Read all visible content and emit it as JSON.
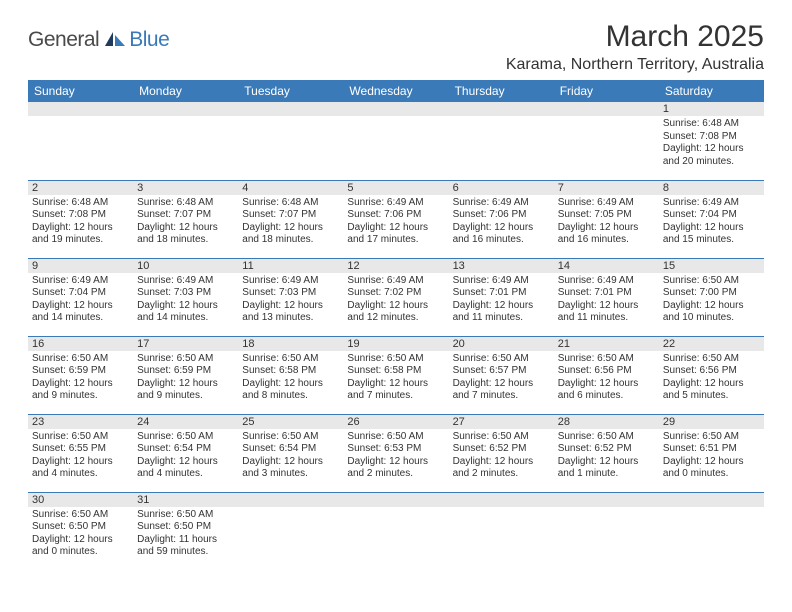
{
  "brand": {
    "text1": "General",
    "text2": "Blue",
    "icon_color_dark": "#1f3a5c",
    "icon_color_light": "#3a7ab8"
  },
  "title": "March 2025",
  "location": "Karama, Northern Territory, Australia",
  "colors": {
    "header_bg": "#3a7ab8",
    "header_text": "#ffffff",
    "daynum_bg": "#e8e8e8",
    "row_border": "#3a7ab8",
    "text": "#333333"
  },
  "dayHeaders": [
    "Sunday",
    "Monday",
    "Tuesday",
    "Wednesday",
    "Thursday",
    "Friday",
    "Saturday"
  ],
  "weeks": [
    [
      null,
      null,
      null,
      null,
      null,
      null,
      {
        "n": "1",
        "sunrise": "6:48 AM",
        "sunset": "7:08 PM",
        "daylight": "12 hours and 20 minutes."
      }
    ],
    [
      {
        "n": "2",
        "sunrise": "6:48 AM",
        "sunset": "7:08 PM",
        "daylight": "12 hours and 19 minutes."
      },
      {
        "n": "3",
        "sunrise": "6:48 AM",
        "sunset": "7:07 PM",
        "daylight": "12 hours and 18 minutes."
      },
      {
        "n": "4",
        "sunrise": "6:48 AM",
        "sunset": "7:07 PM",
        "daylight": "12 hours and 18 minutes."
      },
      {
        "n": "5",
        "sunrise": "6:49 AM",
        "sunset": "7:06 PM",
        "daylight": "12 hours and 17 minutes."
      },
      {
        "n": "6",
        "sunrise": "6:49 AM",
        "sunset": "7:06 PM",
        "daylight": "12 hours and 16 minutes."
      },
      {
        "n": "7",
        "sunrise": "6:49 AM",
        "sunset": "7:05 PM",
        "daylight": "12 hours and 16 minutes."
      },
      {
        "n": "8",
        "sunrise": "6:49 AM",
        "sunset": "7:04 PM",
        "daylight": "12 hours and 15 minutes."
      }
    ],
    [
      {
        "n": "9",
        "sunrise": "6:49 AM",
        "sunset": "7:04 PM",
        "daylight": "12 hours and 14 minutes."
      },
      {
        "n": "10",
        "sunrise": "6:49 AM",
        "sunset": "7:03 PM",
        "daylight": "12 hours and 14 minutes."
      },
      {
        "n": "11",
        "sunrise": "6:49 AM",
        "sunset": "7:03 PM",
        "daylight": "12 hours and 13 minutes."
      },
      {
        "n": "12",
        "sunrise": "6:49 AM",
        "sunset": "7:02 PM",
        "daylight": "12 hours and 12 minutes."
      },
      {
        "n": "13",
        "sunrise": "6:49 AM",
        "sunset": "7:01 PM",
        "daylight": "12 hours and 11 minutes."
      },
      {
        "n": "14",
        "sunrise": "6:49 AM",
        "sunset": "7:01 PM",
        "daylight": "12 hours and 11 minutes."
      },
      {
        "n": "15",
        "sunrise": "6:50 AM",
        "sunset": "7:00 PM",
        "daylight": "12 hours and 10 minutes."
      }
    ],
    [
      {
        "n": "16",
        "sunrise": "6:50 AM",
        "sunset": "6:59 PM",
        "daylight": "12 hours and 9 minutes."
      },
      {
        "n": "17",
        "sunrise": "6:50 AM",
        "sunset": "6:59 PM",
        "daylight": "12 hours and 9 minutes."
      },
      {
        "n": "18",
        "sunrise": "6:50 AM",
        "sunset": "6:58 PM",
        "daylight": "12 hours and 8 minutes."
      },
      {
        "n": "19",
        "sunrise": "6:50 AM",
        "sunset": "6:58 PM",
        "daylight": "12 hours and 7 minutes."
      },
      {
        "n": "20",
        "sunrise": "6:50 AM",
        "sunset": "6:57 PM",
        "daylight": "12 hours and 7 minutes."
      },
      {
        "n": "21",
        "sunrise": "6:50 AM",
        "sunset": "6:56 PM",
        "daylight": "12 hours and 6 minutes."
      },
      {
        "n": "22",
        "sunrise": "6:50 AM",
        "sunset": "6:56 PM",
        "daylight": "12 hours and 5 minutes."
      }
    ],
    [
      {
        "n": "23",
        "sunrise": "6:50 AM",
        "sunset": "6:55 PM",
        "daylight": "12 hours and 4 minutes."
      },
      {
        "n": "24",
        "sunrise": "6:50 AM",
        "sunset": "6:54 PM",
        "daylight": "12 hours and 4 minutes."
      },
      {
        "n": "25",
        "sunrise": "6:50 AM",
        "sunset": "6:54 PM",
        "daylight": "12 hours and 3 minutes."
      },
      {
        "n": "26",
        "sunrise": "6:50 AM",
        "sunset": "6:53 PM",
        "daylight": "12 hours and 2 minutes."
      },
      {
        "n": "27",
        "sunrise": "6:50 AM",
        "sunset": "6:52 PM",
        "daylight": "12 hours and 2 minutes."
      },
      {
        "n": "28",
        "sunrise": "6:50 AM",
        "sunset": "6:52 PM",
        "daylight": "12 hours and 1 minute."
      },
      {
        "n": "29",
        "sunrise": "6:50 AM",
        "sunset": "6:51 PM",
        "daylight": "12 hours and 0 minutes."
      }
    ],
    [
      {
        "n": "30",
        "sunrise": "6:50 AM",
        "sunset": "6:50 PM",
        "daylight": "12 hours and 0 minutes."
      },
      {
        "n": "31",
        "sunrise": "6:50 AM",
        "sunset": "6:50 PM",
        "daylight": "11 hours and 59 minutes."
      },
      null,
      null,
      null,
      null,
      null
    ]
  ],
  "labels": {
    "sunrise": "Sunrise:",
    "sunset": "Sunset:",
    "daylight": "Daylight:"
  }
}
